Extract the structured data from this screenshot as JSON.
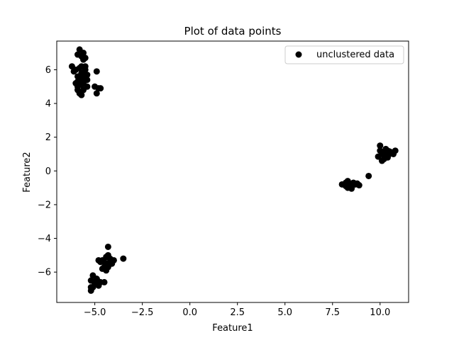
{
  "chart_data": {
    "type": "scatter",
    "title": "Plot of data points",
    "xlabel": "Feature1",
    "ylabel": "Feature2",
    "xlim": [
      -7.0,
      11.5
    ],
    "ylim": [
      -7.8,
      7.7
    ],
    "xticks": [
      -5.0,
      -2.5,
      0.0,
      2.5,
      5.0,
      7.5,
      10.0
    ],
    "xtick_labels": [
      "−5.0",
      "−2.5",
      "0.0",
      "2.5",
      "5.0",
      "7.5",
      "10.0"
    ],
    "yticks": [
      -6,
      -4,
      -2,
      0,
      2,
      4,
      6
    ],
    "ytick_labels": [
      "−6",
      "−4",
      "−2",
      "0",
      "2",
      "4",
      "6"
    ],
    "grid": false,
    "legend": {
      "placement": "top-right",
      "entries": [
        "unclustered data"
      ]
    },
    "series": [
      {
        "name": "unclustered data",
        "color": "#000000",
        "x": [
          -5.8,
          -5.6,
          -5.7,
          -5.5,
          -5.9,
          -5.6,
          -5.7,
          -5.8,
          -5.5,
          -6.2,
          -6.0,
          -6.1,
          -5.7,
          -5.9,
          -5.6,
          -5.4,
          -5.6,
          -5.8,
          -5.7,
          -5.5,
          -4.9,
          -5.9,
          -5.6,
          -5.7,
          -5.5,
          -5.6,
          -5.4,
          -5.4,
          -5.9,
          -6.0,
          -5.8,
          -5.7,
          -5.0,
          -4.8,
          -4.7,
          -4.9,
          -5.9,
          -5.6,
          -5.5,
          -5.8,
          -4.3,
          -4.6,
          -4.5,
          -4.4,
          -4.8,
          -4.3,
          -4.4,
          -4.1,
          -4.2,
          -4.0,
          -4.5,
          -4.3,
          -4.2,
          -4.6,
          -4.4,
          -3.5,
          -4.3,
          -4.7,
          -4.9,
          -5.1,
          -4.9,
          -4.5,
          -5.2,
          -5.0,
          -5.2,
          -4.8,
          -5.0,
          -5.2,
          -5.1,
          -4.7,
          8.0,
          8.2,
          8.3,
          8.3,
          8.4,
          8.5,
          8.6,
          8.7,
          8.9,
          8.4,
          8.3,
          8.2,
          8.5,
          9.4,
          8.8,
          10.0,
          10.1,
          10.2,
          10.3,
          10.4,
          10.5,
          10.6,
          10.8,
          10.7,
          10.3,
          10.2,
          10.1,
          10.4,
          10.6,
          9.9,
          10.0,
          10.3,
          10.5,
          10.2
        ],
        "y": [
          7.2,
          7.0,
          6.8,
          6.7,
          6.9,
          6.6,
          6.2,
          6.1,
          6.0,
          6.2,
          6.0,
          5.9,
          5.8,
          5.6,
          5.7,
          5.7,
          5.5,
          5.6,
          5.4,
          5.4,
          5.9,
          5.3,
          5.2,
          5.1,
          5.5,
          5.3,
          5.4,
          5.0,
          4.8,
          5.2,
          4.6,
          4.5,
          5.0,
          4.9,
          4.9,
          4.6,
          5.0,
          4.8,
          6.2,
          5.5,
          -4.5,
          -5.3,
          -5.4,
          -5.1,
          -5.3,
          -5.0,
          -5.6,
          -5.5,
          -5.2,
          -5.3,
          -5.7,
          -5.7,
          -5.4,
          -5.8,
          -5.9,
          -5.2,
          -5.5,
          -5.4,
          -6.4,
          -6.2,
          -6.4,
          -6.6,
          -6.5,
          -6.6,
          -6.9,
          -6.8,
          -6.7,
          -7.1,
          -6.9,
          -6.6,
          -0.8,
          -0.7,
          -0.6,
          -0.8,
          -0.9,
          -1.0,
          -0.7,
          -0.8,
          -0.85,
          -0.75,
          -1.0,
          -0.9,
          -1.05,
          -0.3,
          -0.75,
          1.2,
          1.0,
          1.1,
          0.9,
          1.2,
          1.0,
          1.1,
          1.2,
          1.0,
          0.9,
          0.7,
          0.6,
          0.8,
          1.05,
          0.85,
          1.5,
          1.3,
          1.15,
          0.95
        ]
      }
    ]
  }
}
